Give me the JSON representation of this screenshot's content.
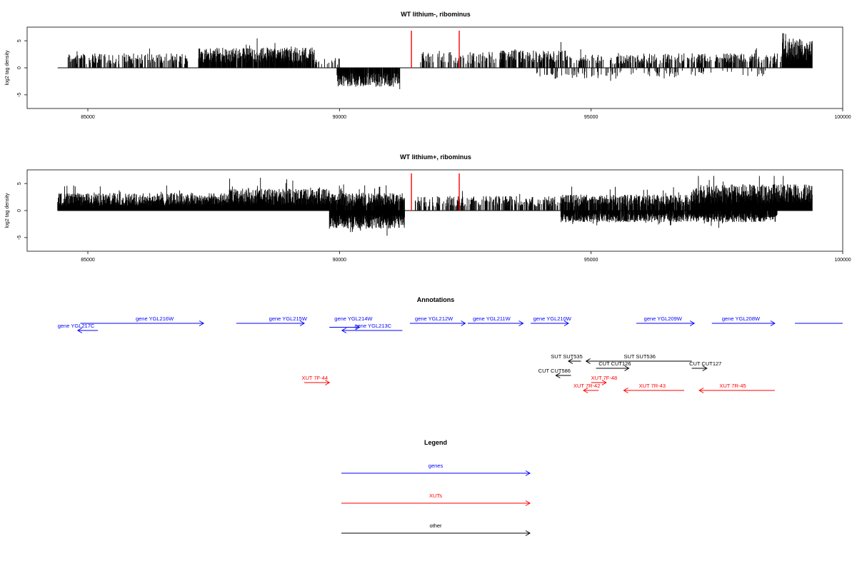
{
  "colors": {
    "gene": "#0000ff",
    "xut": "#ff0000",
    "other": "#000000",
    "marker": "#ff0000",
    "bars": "#000000",
    "frame": "#000000"
  },
  "chart_data": [
    {
      "type": "bar",
      "title": "WT lithium-, ribominus",
      "ylabel": "log2 tag density",
      "xlim": [
        84400,
        99400
      ],
      "ylim": [
        -7,
        7
      ],
      "xticks": [
        85000,
        90000,
        95000,
        100000
      ],
      "xtick_labels": [
        "85000",
        "90000",
        "95000",
        "100000"
      ],
      "yticks": [
        -5,
        0,
        5
      ],
      "ytick_labels": [
        "-5",
        "0",
        "5"
      ],
      "grid": false,
      "markers_x": [
        91430,
        92380
      ],
      "positive_regions": [
        {
          "x0": 84600,
          "x1": 87000,
          "mean": 2.0,
          "density": 0.45
        },
        {
          "x0": 87200,
          "x1": 89500,
          "mean": 2.8,
          "density": 0.85
        },
        {
          "x0": 89500,
          "x1": 90000,
          "mean": 1.6,
          "density": 0.25
        },
        {
          "x0": 91600,
          "x1": 93200,
          "mean": 2.2,
          "density": 0.35
        },
        {
          "x0": 93200,
          "x1": 94500,
          "mean": 2.4,
          "density": 0.55
        },
        {
          "x0": 94500,
          "x1": 96000,
          "mean": 1.8,
          "density": 0.3
        },
        {
          "x0": 96000,
          "x1": 98800,
          "mean": 2.0,
          "density": 0.45
        },
        {
          "x0": 98800,
          "x1": 99400,
          "mean": 4.0,
          "density": 1.0
        }
      ],
      "negative_regions": [
        {
          "x0": 89950,
          "x1": 91200,
          "mean": -2.6,
          "density": 0.9
        },
        {
          "x0": 93900,
          "x1": 95600,
          "mean": -1.5,
          "density": 0.18
        },
        {
          "x0": 95600,
          "x1": 98500,
          "mean": -1.2,
          "density": 0.1
        }
      ]
    },
    {
      "type": "bar",
      "title": "WT lithium+, ribominus",
      "ylabel": "log2 tag density",
      "xlim": [
        84400,
        99400
      ],
      "ylim": [
        -7,
        7
      ],
      "xticks": [
        85000,
        90000,
        95000,
        100000
      ],
      "xtick_labels": [
        "85000",
        "90000",
        "95000",
        "100000"
      ],
      "yticks": [
        -5,
        0,
        5
      ],
      "ytick_labels": [
        "-5",
        "0",
        "5"
      ],
      "grid": false,
      "markers_x": [
        91430,
        92380
      ],
      "positive_regions": [
        {
          "x0": 84400,
          "x1": 87800,
          "mean": 2.4,
          "density": 1.0
        },
        {
          "x0": 87800,
          "x1": 89800,
          "mean": 3.0,
          "density": 1.0
        },
        {
          "x0": 89800,
          "x1": 91300,
          "mean": 2.4,
          "density": 0.9
        },
        {
          "x0": 91500,
          "x1": 94400,
          "mean": 2.0,
          "density": 0.45
        },
        {
          "x0": 94400,
          "x1": 97000,
          "mean": 2.2,
          "density": 0.8
        },
        {
          "x0": 97000,
          "x1": 99400,
          "mean": 3.6,
          "density": 1.0
        }
      ],
      "negative_regions": [
        {
          "x0": 89800,
          "x1": 91300,
          "mean": -2.5,
          "density": 1.0
        },
        {
          "x0": 94400,
          "x1": 98700,
          "mean": -1.6,
          "density": 0.9
        }
      ]
    }
  ],
  "annotations": {
    "title": "Annotations",
    "features": [
      {
        "label": "gene YGL216W",
        "type": "gene",
        "dir": "right",
        "x0": 84850,
        "x1": 87300,
        "row": 0,
        "lx": 85950,
        "ly": 0
      },
      {
        "label": "gene YGL217C",
        "type": "gene",
        "dir": "left",
        "x0": 84800,
        "x1": 85200,
        "row": 1,
        "lx": 84400,
        "ly": 1
      },
      {
        "label": "gene YGL215W",
        "type": "gene",
        "dir": "right",
        "x0": 87950,
        "x1": 89300,
        "row": 0,
        "lx": 88600,
        "ly": 0
      },
      {
        "label": "gene YGL214W",
        "type": "gene",
        "dir": "right",
        "x0": 89800,
        "x1": 90400,
        "row": 0.55,
        "lx": 89900,
        "ly": 0
      },
      {
        "label": "gene YGL213C",
        "type": "gene",
        "dir": "left",
        "x0": 90050,
        "x1": 91250,
        "row": 1,
        "lx": 90300,
        "ly": 1
      },
      {
        "label": "gene YGL212W",
        "type": "gene",
        "dir": "right",
        "x0": 91400,
        "x1": 92500,
        "row": 0,
        "lx": 91500,
        "ly": 0
      },
      {
        "label": "gene YGL211W",
        "type": "gene",
        "dir": "right",
        "x0": 92550,
        "x1": 93650,
        "row": 0,
        "lx": 92650,
        "ly": 0
      },
      {
        "label": "gene YGL210W",
        "type": "gene",
        "dir": "right",
        "x0": 93800,
        "x1": 94550,
        "row": 0,
        "lx": 93850,
        "ly": 0
      },
      {
        "label": "gene YGL209W",
        "type": "gene",
        "dir": "right",
        "x0": 95900,
        "x1": 97050,
        "row": 0,
        "lx": 96050,
        "ly": 0
      },
      {
        "label": "gene YGL208W",
        "type": "gene",
        "dir": "right",
        "x0": 97400,
        "x1": 98650,
        "row": 0,
        "lx": 97600,
        "ly": 0
      },
      {
        "label": "",
        "type": "gene",
        "dir": "none",
        "x0": 99050,
        "x1": 100000,
        "row": 0,
        "lx": 0,
        "ly": 0
      },
      {
        "label": "SUT SUT535",
        "type": "other",
        "dir": "left",
        "x0": 94550,
        "x1": 94800,
        "row": 0,
        "lx": 94200,
        "ly": 0,
        "block": "other"
      },
      {
        "label": "SUT SUT536",
        "type": "other",
        "dir": "left",
        "x0": 94900,
        "x1": 97000,
        "row": 0,
        "lx": 95650,
        "ly": 0,
        "block": "other"
      },
      {
        "label": "CUT CUT126",
        "type": "other",
        "dir": "right",
        "x0": 95100,
        "x1": 95750,
        "row": 1,
        "lx": 95150,
        "ly": 1,
        "block": "other"
      },
      {
        "label": "CUT CUT127",
        "type": "other",
        "dir": "right",
        "x0": 97000,
        "x1": 97300,
        "row": 1,
        "lx": 96950,
        "ly": 1,
        "block": "other"
      },
      {
        "label": "CUT CUT586",
        "type": "other",
        "dir": "left",
        "x0": 94300,
        "x1": 94600,
        "row": 2,
        "lx": 93950,
        "ly": 2,
        "block": "other"
      },
      {
        "label": "XUT 7F-44",
        "type": "xut",
        "dir": "right",
        "x0": 89300,
        "x1": 89800,
        "row": 0,
        "lx": 89250,
        "ly": 0,
        "block": "xut"
      },
      {
        "label": "XUT 7F-48",
        "type": "xut",
        "dir": "right",
        "x0": 95000,
        "x1": 95300,
        "row": 0,
        "lx": 95000,
        "ly": 0,
        "block": "xut"
      },
      {
        "label": "XUT 7R-42",
        "type": "xut",
        "dir": "left",
        "x0": 94850,
        "x1": 95150,
        "row": 1,
        "lx": 94650,
        "ly": 1,
        "block": "xut"
      },
      {
        "label": "XUT 7R-43",
        "type": "xut",
        "dir": "left",
        "x0": 95650,
        "x1": 96850,
        "row": 1,
        "lx": 95950,
        "ly": 1,
        "block": "xut"
      },
      {
        "label": "XUT 7R-45",
        "type": "xut",
        "dir": "left",
        "x0": 97150,
        "x1": 98650,
        "row": 1,
        "lx": 97550,
        "ly": 1,
        "block": "xut"
      }
    ]
  },
  "legend": {
    "title": "Legend",
    "items": [
      {
        "label": "genes",
        "type": "gene"
      },
      {
        "label": "XUTs",
        "type": "xut"
      },
      {
        "label": "other",
        "type": "other"
      }
    ]
  }
}
